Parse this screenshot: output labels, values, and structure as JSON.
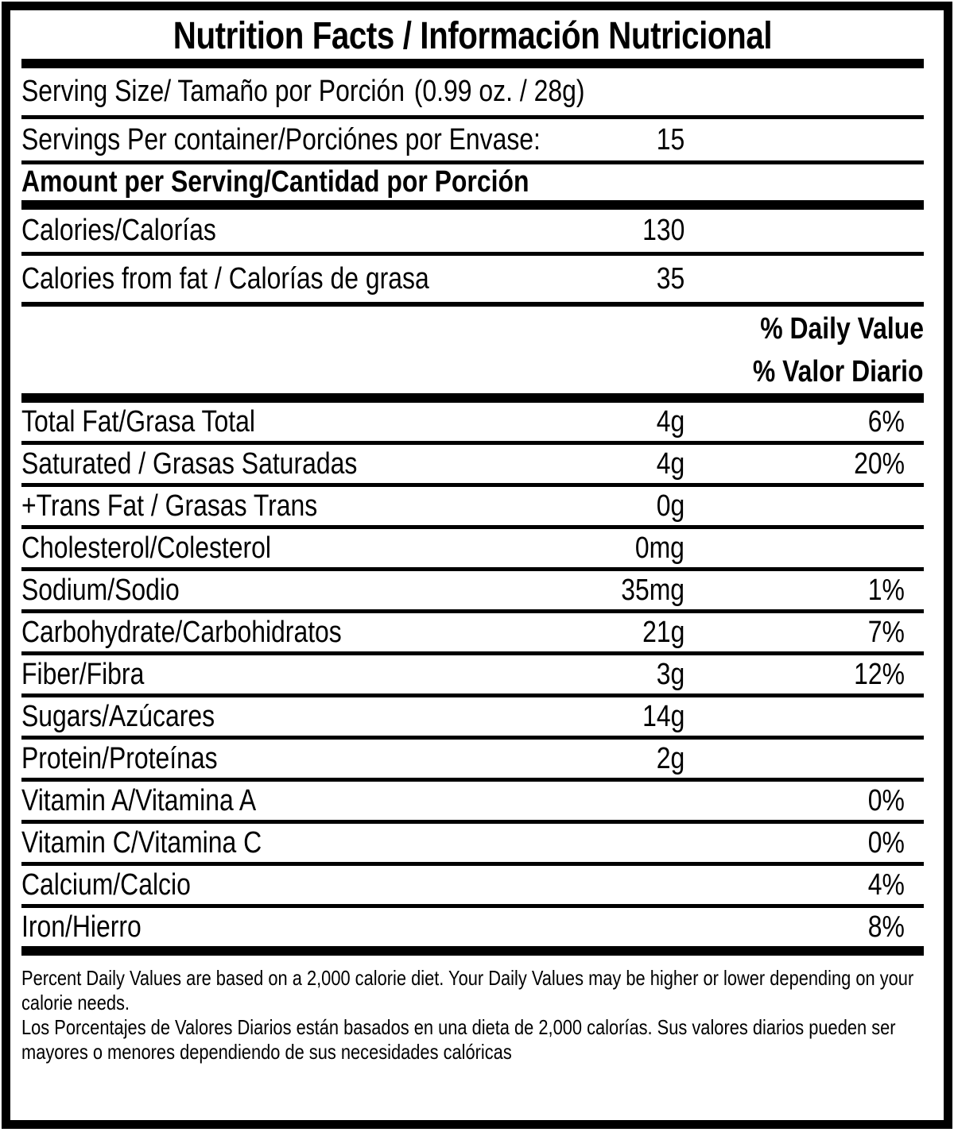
{
  "colors": {
    "text": "#000000",
    "background": "#ffffff"
  },
  "title": "Nutrition Facts / Información Nutricional",
  "serving_size": {
    "label": "Serving Size/ Tamaño por Porción",
    "value": "(0.99 oz. / 28g)"
  },
  "servings_per_container": {
    "label": "Servings Per container/Porciónes por Envase:",
    "amount": "15"
  },
  "amount_per_serving_header": "Amount per Serving/Cantidad por Porción",
  "calories": {
    "label": "Calories/Calorías",
    "amount": "130"
  },
  "calories_from_fat": {
    "label": "Calories from fat / Calorías de grasa",
    "amount": "35"
  },
  "daily_value_header": {
    "line1": "% Daily Value",
    "line2": "% Valor Diario"
  },
  "nutrients": {
    "total_fat": {
      "label": "Total Fat/Grasa Total",
      "amount": "4g",
      "dv": "6%"
    },
    "saturated_fat": {
      "label": "Saturated / Grasas Saturadas",
      "amount": "4g",
      "dv": "20%"
    },
    "trans_fat": {
      "label": "+Trans Fat / Grasas Trans",
      "amount": "0g",
      "dv": ""
    },
    "cholesterol": {
      "label": "Cholesterol/Colesterol",
      "amount": "0mg",
      "dv": ""
    },
    "sodium": {
      "label": "Sodium/Sodio",
      "amount": "35mg",
      "dv": "1%"
    },
    "carbohydrate": {
      "label": "Carbohydrate/Carbohidratos",
      "amount": "21g",
      "dv": "7%"
    },
    "fiber": {
      "label": "Fiber/Fibra",
      "amount": "3g",
      "dv": "12%"
    },
    "sugars": {
      "label": "Sugars/Azúcares",
      "amount": "14g",
      "dv": ""
    },
    "protein": {
      "label": "Protein/Proteínas",
      "amount": "2g",
      "dv": ""
    },
    "vitamin_a": {
      "label": "Vitamin A/Vitamina A",
      "amount": "",
      "dv": "0%"
    },
    "vitamin_c": {
      "label": "Vitamin C/Vitamina C",
      "amount": "",
      "dv": "0%"
    },
    "calcium": {
      "label": "Calcium/Calcio",
      "amount": "",
      "dv": "4%"
    },
    "iron": {
      "label": "Iron/Hierro",
      "amount": "",
      "dv": "8%"
    }
  },
  "footnote": {
    "en": "Percent Daily Values are based on a 2,000 calorie diet. Your Daily Values may be higher or lower depending on your calorie needs.",
    "es": "Los Porcentajes de Valores Diarios están basados en una dieta de 2,000 calorías. Sus valores diarios pueden ser mayores o menores dependiendo de sus necesidades calóricas"
  }
}
